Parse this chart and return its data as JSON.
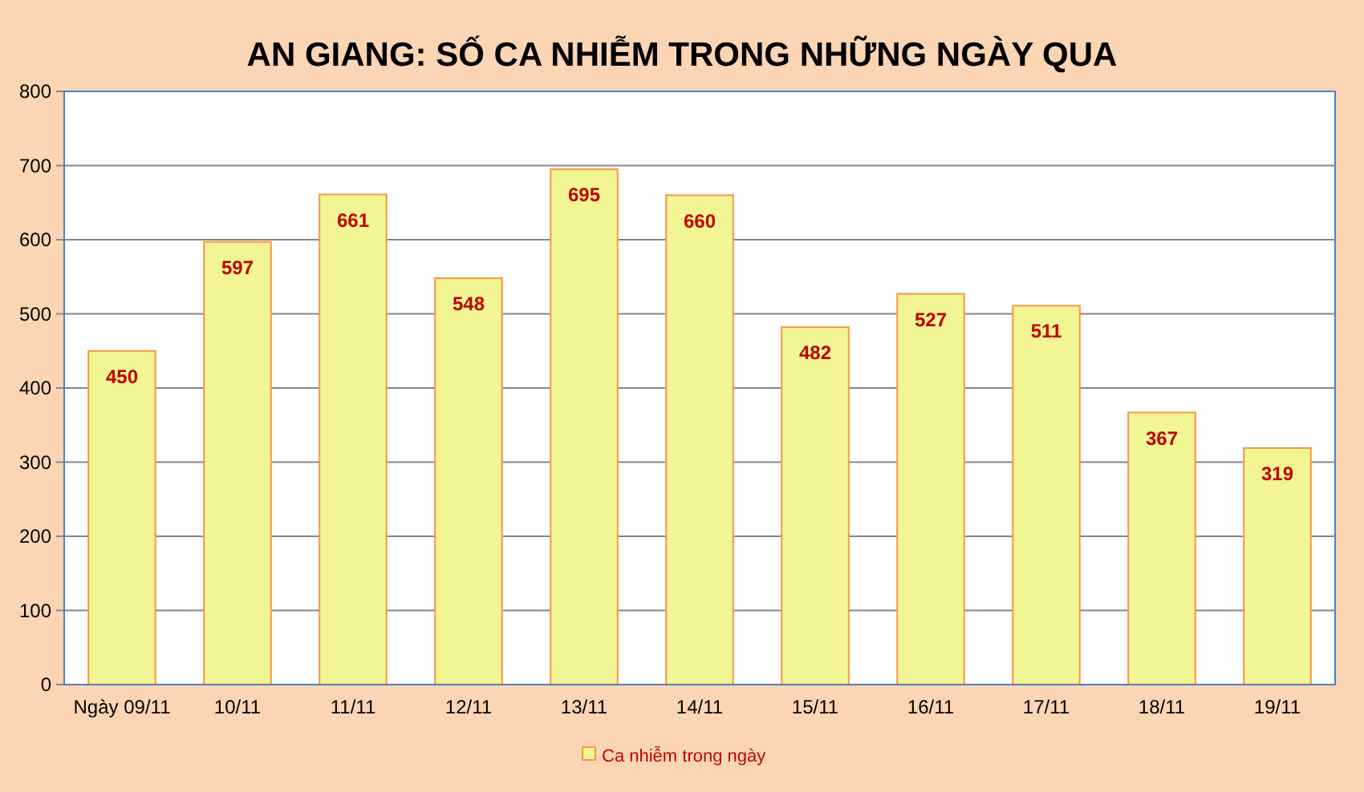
{
  "chart_data": {
    "type": "bar",
    "title": "AN GIANG: SỐ CA NHIỄM TRONG NHỮNG NGÀY QUA",
    "categories": [
      "Ngày 09/11",
      "10/11",
      "11/11",
      "12/11",
      "13/11",
      "14/11",
      "15/11",
      "16/11",
      "17/11",
      "18/11",
      "19/11"
    ],
    "series": [
      {
        "name": "Ca nhiễm trong ngày",
        "color": "#f2f593",
        "values": [
          450,
          597,
          661,
          548,
          695,
          660,
          482,
          527,
          511,
          367,
          319
        ]
      }
    ],
    "ylim": [
      0,
      800
    ],
    "yticks": [
      0,
      100,
      200,
      300,
      400,
      500,
      600,
      700,
      800
    ],
    "grid": "y",
    "legend": "bottom",
    "data_labels": true
  }
}
